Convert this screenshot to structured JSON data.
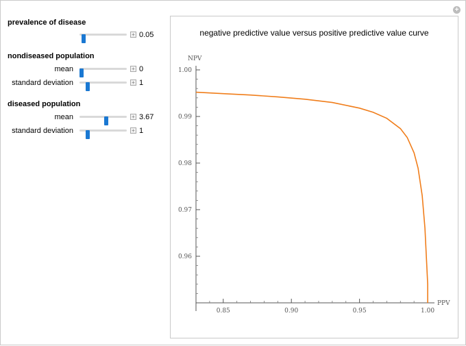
{
  "controls": {
    "prevalence": {
      "title": "prevalence of disease",
      "value": "0.05",
      "fraction": 0.05
    },
    "nondiseased": {
      "title": "nondiseased population",
      "mean": {
        "label": "mean",
        "value": "0",
        "fraction": 0.0
      },
      "sd": {
        "label": "standard deviation",
        "value": "1",
        "fraction": 0.15
      }
    },
    "diseased": {
      "title": "diseased population",
      "mean": {
        "label": "mean",
        "value": "3.67",
        "fraction": 0.57
      },
      "sd": {
        "label": "standard deviation",
        "value": "1",
        "fraction": 0.15
      }
    },
    "plus_glyph": "+"
  },
  "close_glyph": "+",
  "colors": {
    "curve": "#f07d1a",
    "slider_thumb": "#1a78d2"
  },
  "chart_data": {
    "type": "line",
    "title": "negative predictive value versus positive predictive value curve",
    "xlabel": "PPV",
    "ylabel": "NPV",
    "xlim": [
      0.83,
      1.005
    ],
    "ylim": [
      0.95,
      1.0
    ],
    "xticks": [
      0.85,
      0.9,
      0.95,
      1.0
    ],
    "xtick_labels": [
      "0.85",
      "0.90",
      "0.95",
      "1.00"
    ],
    "yticks": [
      0.96,
      0.97,
      0.98,
      0.99,
      1.0
    ],
    "ytick_labels": [
      "0.96",
      "0.97",
      "0.98",
      "0.99",
      "1.00"
    ],
    "grid": false,
    "series": [
      {
        "x": [
          0.83,
          0.85,
          0.87,
          0.89,
          0.91,
          0.93,
          0.95,
          0.96,
          0.97,
          0.98,
          0.985,
          0.99,
          0.993,
          0.996,
          0.998,
          0.999,
          1.0,
          1.0
        ],
        "y": [
          0.9952,
          0.9949,
          0.9946,
          0.9942,
          0.9937,
          0.993,
          0.9918,
          0.9909,
          0.9896,
          0.9874,
          0.9855,
          0.9822,
          0.9789,
          0.973,
          0.966,
          0.96,
          0.954,
          0.95
        ]
      }
    ]
  }
}
